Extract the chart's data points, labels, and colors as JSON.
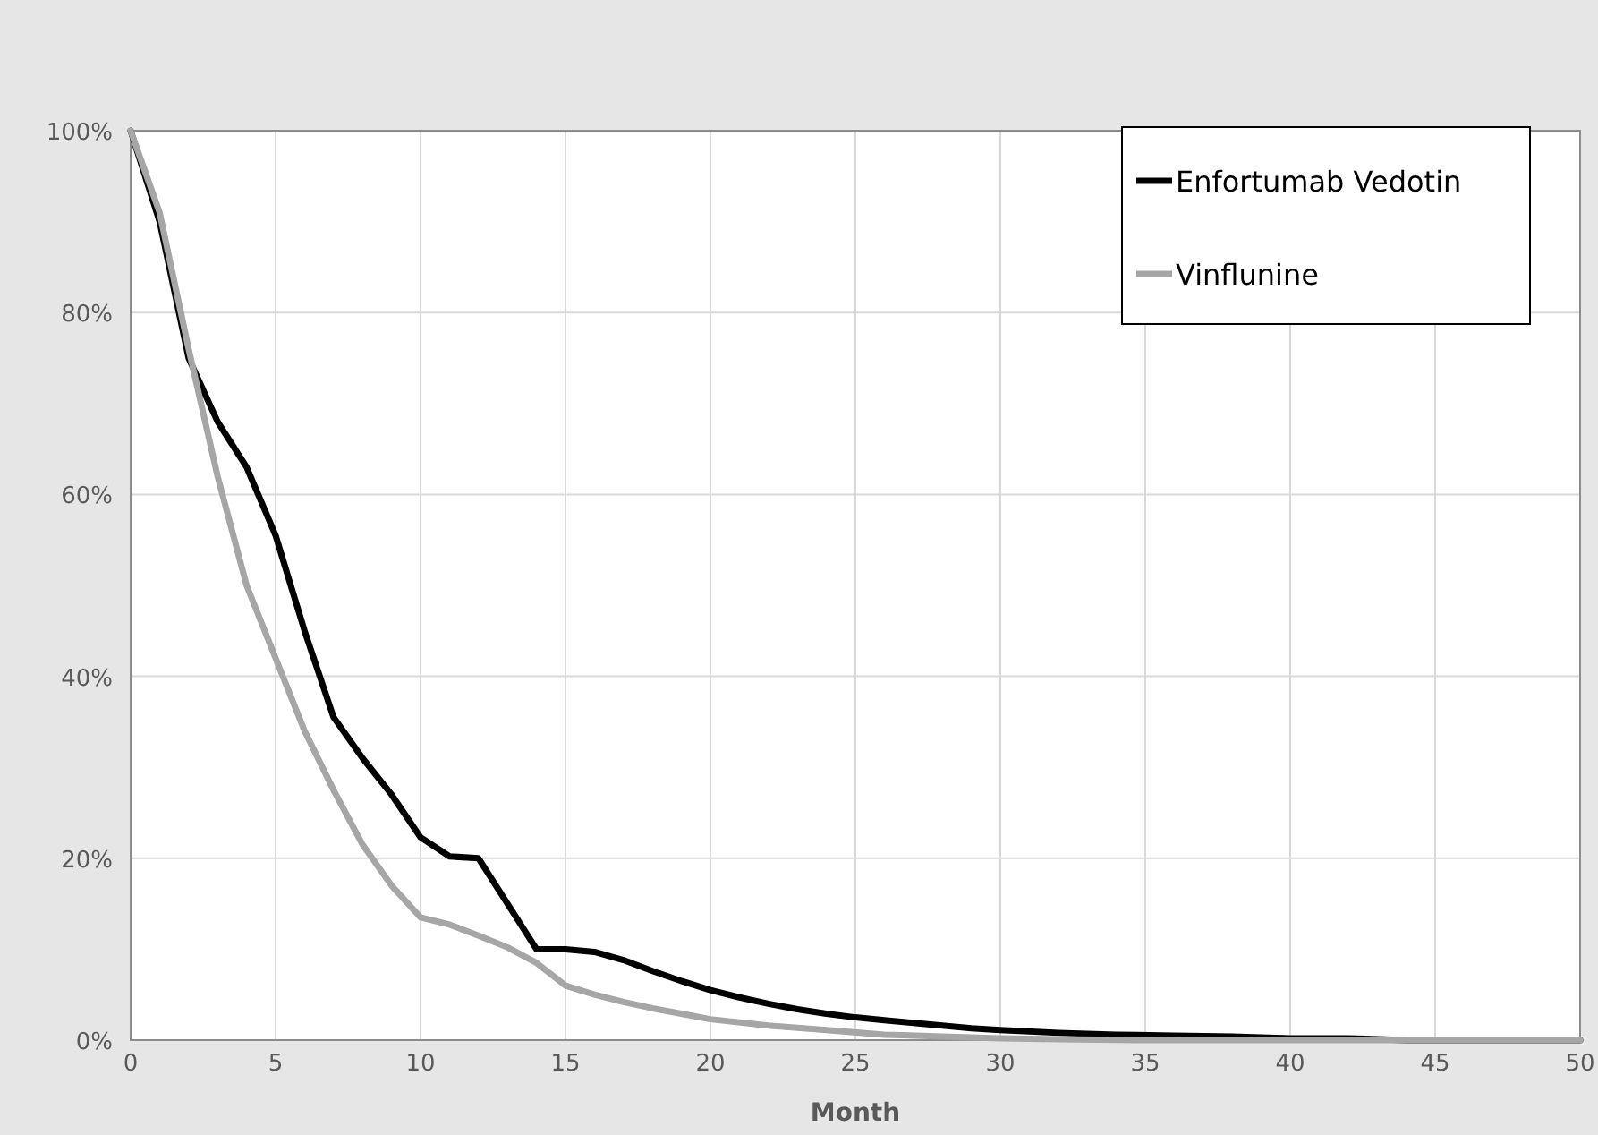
{
  "chart_data": {
    "type": "line",
    "xlabel": "Month",
    "xlim": [
      0,
      50
    ],
    "xticks": [
      0,
      5,
      10,
      15,
      20,
      25,
      30,
      35,
      40,
      45,
      50
    ],
    "ylim": [
      0,
      100
    ],
    "yticks": [
      {
        "value": 0,
        "label": "0%"
      },
      {
        "value": 20,
        "label": "20%"
      },
      {
        "value": 40,
        "label": "40%"
      },
      {
        "value": 60,
        "label": "60%"
      },
      {
        "value": 80,
        "label": "80%"
      },
      {
        "value": 100,
        "label": "100%"
      }
    ],
    "grid": true,
    "legend": "top right",
    "marker": "none",
    "line_style": "solid",
    "series": [
      {
        "name": "Enfortumab Vedotin",
        "color": "#000000",
        "x": [
          0,
          1,
          2,
          3,
          4,
          5,
          6,
          7,
          8,
          9,
          10,
          11,
          12,
          13,
          14,
          15,
          16,
          17,
          18,
          19,
          20,
          21,
          22,
          23,
          24,
          25,
          26,
          27,
          28,
          29,
          30,
          32,
          34,
          36,
          38,
          40,
          42,
          44,
          46,
          48,
          50
        ],
        "values": [
          100,
          90,
          75,
          68,
          63,
          55.5,
          45,
          35.5,
          31,
          27,
          22.3,
          20.2,
          20,
          15,
          10,
          10,
          9.7,
          8.8,
          7.6,
          6.5,
          5.5,
          4.7,
          4,
          3.4,
          2.9,
          2.5,
          2.2,
          1.9,
          1.6,
          1.3,
          1.1,
          0.8,
          0.6,
          0.5,
          0.4,
          0.2,
          0.2,
          0,
          0,
          0,
          0
        ]
      },
      {
        "name": "Vinflunine",
        "color": "#a6a6a6",
        "x": [
          0,
          1,
          2,
          3,
          4,
          5,
          6,
          7,
          8,
          9,
          10,
          11,
          12,
          13,
          14,
          15,
          16,
          17,
          18,
          19,
          20,
          22,
          24,
          26,
          28,
          30,
          32,
          35,
          40,
          45,
          50
        ],
        "values": [
          100,
          91,
          76,
          62,
          50,
          42,
          34,
          27.5,
          21.5,
          17,
          13.5,
          12.7,
          11.5,
          10.2,
          8.5,
          6,
          5,
          4.2,
          3.5,
          2.9,
          2.3,
          1.6,
          1.1,
          0.6,
          0.4,
          0.2,
          0.1,
          0,
          0,
          0,
          0
        ]
      }
    ]
  }
}
